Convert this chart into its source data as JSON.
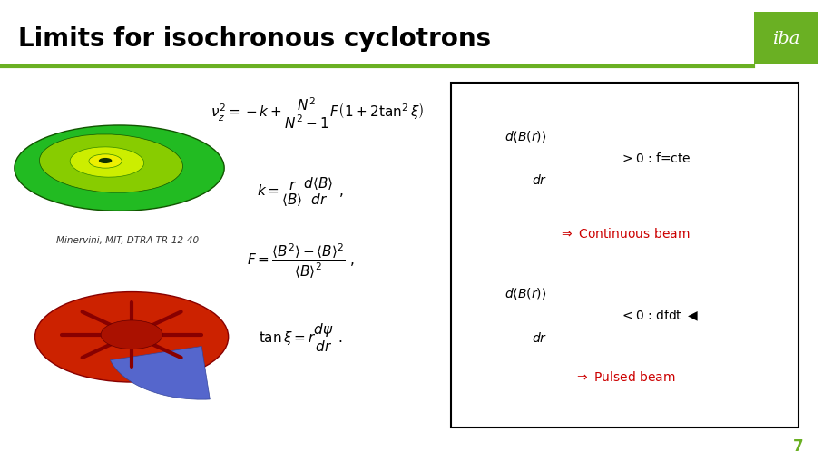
{
  "title": "Limits for isochronous cyclotrons",
  "title_color": "#000000",
  "title_fontsize": 20,
  "bg_color": "#ffffff",
  "header_line_color": "#6ab023",
  "iba_box_color": "#6ab023",
  "iba_text": "iba",
  "subtitle_text": "Minervini, MIT, DTRA-TR-12-40",
  "box_border_color": "#000000",
  "box_text_color": "#cc0000",
  "eq_color": "#000000",
  "page_number": "7",
  "page_number_color": "#6ab023"
}
